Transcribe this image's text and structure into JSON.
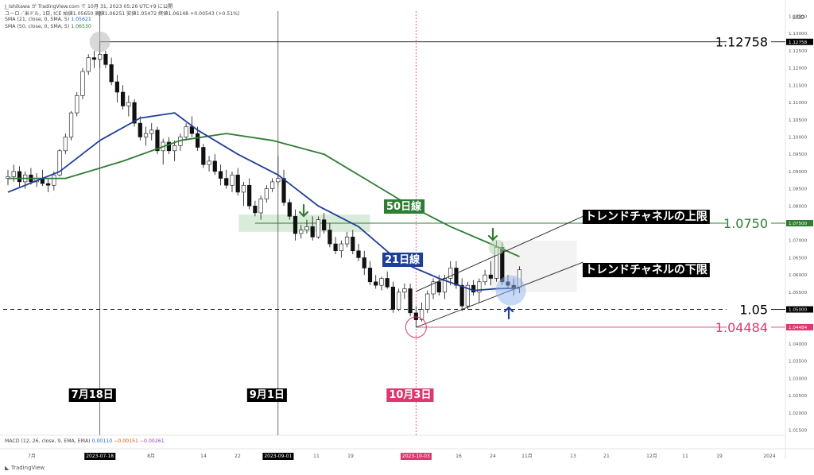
{
  "header": {
    "publisher": "J_Ishikawa が TradingView.com で 10月 31, 2023 05:26 UTC+9 に公開",
    "symbol_line": "ユーロ／米ドル, 1日, ICE  始値1.05650  高値1.06251  安値1.05472  終値1.06148  +0.00543 (+0.51%)",
    "sma21_label": "SMA (21, close, 0, SMA, 5)",
    "sma21_value": "1.05621",
    "sma50_label": "SMA (50, close, 0, SMA, 5)",
    "sma50_value": "1.06530",
    "currency": "USD"
  },
  "macd_label": "MACD (12, 26, close, 9, EMA, EMA)",
  "macd_values": [
    "0.00110",
    "−0.00151",
    "−0.00261"
  ],
  "footer": "TradingView",
  "colors": {
    "sma21": "#1f3f97",
    "sma50": "#2e7d32",
    "up_candle": "#ffffff",
    "down_candle": "#111111",
    "low_level": "#e0356e",
    "resistance_zone": "#cfe6cf",
    "date_badge": "#000000",
    "low_badge": "#e0356e"
  },
  "chart_data": {
    "type": "candlestick",
    "instrument": "EUR/USD",
    "timeframe": "1D",
    "ylim": [
      1.0135,
      1.1365
    ],
    "y_ticks": [
      "1.13500",
      "1.13000",
      "1.12500",
      "1.12000",
      "1.11500",
      "1.11000",
      "1.10500",
      "1.10000",
      "1.09500",
      "1.09000",
      "1.08500",
      "1.08000",
      "1.07500",
      "1.07000",
      "1.06500",
      "1.06000",
      "1.05500",
      "1.05000",
      "1.04500",
      "1.04000",
      "1.03500",
      "1.03000",
      "1.02500",
      "1.02000",
      "1.01500"
    ],
    "x_ticks": [
      "7月",
      "2023-07-18",
      "8月",
      "14",
      "22",
      "2023-09-01",
      "11",
      "19",
      "2023-10-03",
      "16",
      "24",
      "11月",
      "13",
      "21",
      "12月",
      "11",
      "19",
      "2024"
    ],
    "candles": [
      [
        1.088,
        1.0905,
        1.086,
        1.0885
      ],
      [
        1.0885,
        1.092,
        1.087,
        1.09
      ],
      [
        1.09,
        1.0915,
        1.0855,
        1.087
      ],
      [
        1.087,
        1.09,
        1.085,
        1.089
      ],
      [
        1.089,
        1.091,
        1.0862,
        1.087
      ],
      [
        1.087,
        1.0895,
        1.0855,
        1.088
      ],
      [
        1.088,
        1.0905,
        1.0858,
        1.0865
      ],
      [
        1.0865,
        1.088,
        1.084,
        1.086
      ],
      [
        1.086,
        1.09,
        1.0845,
        1.089
      ],
      [
        1.089,
        1.0965,
        1.0885,
        1.096
      ],
      [
        1.096,
        1.101,
        1.095,
        1.1
      ],
      [
        1.1,
        1.1075,
        1.099,
        1.107
      ],
      [
        1.107,
        1.113,
        1.106,
        1.112
      ],
      [
        1.112,
        1.12,
        1.111,
        1.119
      ],
      [
        1.119,
        1.124,
        1.118,
        1.123
      ],
      [
        1.123,
        1.125,
        1.12,
        1.1225
      ],
      [
        1.1225,
        1.1276,
        1.12,
        1.124
      ],
      [
        1.124,
        1.125,
        1.12,
        1.121
      ],
      [
        1.121,
        1.123,
        1.115,
        1.116
      ],
      [
        1.116,
        1.118,
        1.11,
        1.113
      ],
      [
        1.113,
        1.115,
        1.108,
        1.109
      ],
      [
        1.109,
        1.112,
        1.106,
        1.11
      ],
      [
        1.11,
        1.111,
        1.103,
        1.104
      ],
      [
        1.104,
        1.106,
        1.099,
        1.1
      ],
      [
        1.1,
        1.103,
        1.0975,
        1.101
      ],
      [
        1.101,
        1.104,
        1.099,
        1.102
      ],
      [
        1.102,
        1.103,
        1.095,
        1.096
      ],
      [
        1.096,
        1.0995,
        1.092,
        1.0985
      ],
      [
        1.0985,
        1.1,
        1.095,
        1.096
      ],
      [
        1.096,
        1.099,
        1.093,
        1.0975
      ],
      [
        1.0975,
        1.101,
        1.096,
        1.1
      ],
      [
        1.1,
        1.104,
        1.099,
        1.103
      ],
      [
        1.103,
        1.106,
        1.1,
        1.101
      ],
      [
        1.101,
        1.103,
        1.096,
        1.097
      ],
      [
        1.097,
        1.098,
        1.091,
        1.092
      ],
      [
        1.092,
        1.0945,
        1.09,
        1.093
      ],
      [
        1.093,
        1.095,
        1.089,
        1.09
      ],
      [
        1.09,
        1.092,
        1.086,
        1.088
      ],
      [
        1.088,
        1.0905,
        1.085,
        1.086
      ],
      [
        1.086,
        1.09,
        1.084,
        1.089
      ],
      [
        1.089,
        1.091,
        1.083,
        1.084
      ],
      [
        1.084,
        1.087,
        1.08,
        1.086
      ],
      [
        1.086,
        1.088,
        1.079,
        1.08
      ],
      [
        1.08,
        1.0815,
        1.077,
        1.078
      ],
      [
        1.078,
        1.083,
        1.076,
        1.082
      ],
      [
        1.082,
        1.086,
        1.081,
        1.085
      ],
      [
        1.085,
        1.088,
        1.084,
        1.087
      ],
      [
        1.087,
        1.0945,
        1.086,
        1.088
      ],
      [
        1.088,
        1.0905,
        1.08,
        1.081
      ],
      [
        1.081,
        1.082,
        1.076,
        1.077
      ],
      [
        1.077,
        1.079,
        1.07,
        1.072
      ],
      [
        1.072,
        1.0745,
        1.0705,
        1.073
      ],
      [
        1.073,
        1.076,
        1.072,
        1.074
      ],
      [
        1.074,
        1.077,
        1.07,
        1.071
      ],
      [
        1.071,
        1.077,
        1.0705,
        1.076
      ],
      [
        1.076,
        1.078,
        1.072,
        1.073
      ],
      [
        1.073,
        1.075,
        1.068,
        1.069
      ],
      [
        1.069,
        1.071,
        1.066,
        1.067
      ],
      [
        1.067,
        1.07,
        1.065,
        1.069
      ],
      [
        1.069,
        1.0725,
        1.068,
        1.071
      ],
      [
        1.071,
        1.073,
        1.066,
        1.067
      ],
      [
        1.067,
        1.069,
        1.064,
        1.065
      ],
      [
        1.065,
        1.067,
        1.06,
        1.062
      ],
      [
        1.062,
        1.064,
        1.057,
        1.058
      ],
      [
        1.058,
        1.06,
        1.056,
        1.057
      ],
      [
        1.057,
        1.0595,
        1.0555,
        1.059
      ],
      [
        1.059,
        1.061,
        1.056,
        1.0565
      ],
      [
        1.0565,
        1.058,
        1.049,
        1.05
      ],
      [
        1.05,
        1.056,
        1.0495,
        1.055
      ],
      [
        1.055,
        1.0575,
        1.053,
        1.056
      ],
      [
        1.056,
        1.0575,
        1.048,
        1.049
      ],
      [
        1.049,
        1.051,
        1.04484,
        1.047
      ],
      [
        1.047,
        1.052,
        1.0465,
        1.05
      ],
      [
        1.05,
        1.0555,
        1.049,
        1.0545
      ],
      [
        1.0545,
        1.059,
        1.053,
        1.058
      ],
      [
        1.058,
        1.06,
        1.054,
        1.055
      ],
      [
        1.055,
        1.06,
        1.053,
        1.059
      ],
      [
        1.059,
        1.064,
        1.057,
        1.062
      ],
      [
        1.062,
        1.064,
        1.056,
        1.057
      ],
      [
        1.057,
        1.059,
        1.0495,
        1.051
      ],
      [
        1.051,
        1.058,
        1.05,
        1.057
      ],
      [
        1.057,
        1.0585,
        1.054,
        1.055
      ],
      [
        1.055,
        1.059,
        1.052,
        1.058
      ],
      [
        1.058,
        1.0615,
        1.057,
        1.06
      ],
      [
        1.06,
        1.064,
        1.057,
        1.059
      ],
      [
        1.059,
        1.07,
        1.058,
        1.068
      ],
      [
        1.068,
        1.0695,
        1.057,
        1.058
      ],
      [
        1.058,
        1.06,
        1.056,
        1.057
      ],
      [
        1.057,
        1.059,
        1.054,
        1.056
      ],
      [
        1.0565,
        1.0625,
        1.0547,
        1.0615
      ]
    ],
    "sma21": [
      [
        0,
        1.084
      ],
      [
        9,
        1.09
      ],
      [
        16,
        1.099
      ],
      [
        23,
        1.1055
      ],
      [
        29,
        1.107
      ],
      [
        33,
        1.102
      ],
      [
        40,
        1.095
      ],
      [
        47,
        1.089
      ],
      [
        54,
        1.08
      ],
      [
        61,
        1.074
      ],
      [
        68,
        1.064
      ],
      [
        75,
        1.059
      ],
      [
        81,
        1.0555
      ],
      [
        85,
        1.056
      ],
      [
        89,
        1.05621
      ]
    ],
    "sma50": [
      [
        0,
        1.088
      ],
      [
        10,
        1.088
      ],
      [
        20,
        1.093
      ],
      [
        30,
        1.099
      ],
      [
        38,
        1.101
      ],
      [
        46,
        1.099
      ],
      [
        55,
        1.095
      ],
      [
        63,
        1.087
      ],
      [
        70,
        1.08
      ],
      [
        77,
        1.074
      ],
      [
        84,
        1.069
      ],
      [
        89,
        1.0653
      ]
    ],
    "levels": [
      {
        "label": "1.12758",
        "axis_badge": "1.12758",
        "value": 1.12758,
        "color": "#000000"
      },
      {
        "label": "1.0750",
        "axis_badge": "1.07500",
        "value": 1.075,
        "color": "#2e7d32"
      },
      {
        "label": "1.05",
        "axis_badge": "1.05000",
        "value": 1.05,
        "color": "#000000"
      },
      {
        "label": "1.04484",
        "axis_badge": "1.04484",
        "value": 1.04484,
        "color": "#e0356e"
      }
    ],
    "annotations": {
      "sma50_label": "50日線",
      "sma21_label": "21日線",
      "upper_channel": "トレンドチャネルの上限",
      "lower_channel": "トレンドチャネルの下限"
    },
    "date_markers": [
      {
        "label": "7月18日",
        "axis_date": "2023-07-18",
        "candle": 16
      },
      {
        "label": "9月1日",
        "axis_date": "2023-09-01",
        "candle": 47
      },
      {
        "label": "10月3日",
        "axis_date": "2023-10-03",
        "candle": 71
      }
    ],
    "channel": {
      "upper": [
        [
          71,
          1.0552
        ],
        [
          89,
          1.0685
        ]
      ],
      "lower": [
        [
          71,
          1.0448
        ],
        [
          89,
          1.0552
        ]
      ]
    }
  }
}
